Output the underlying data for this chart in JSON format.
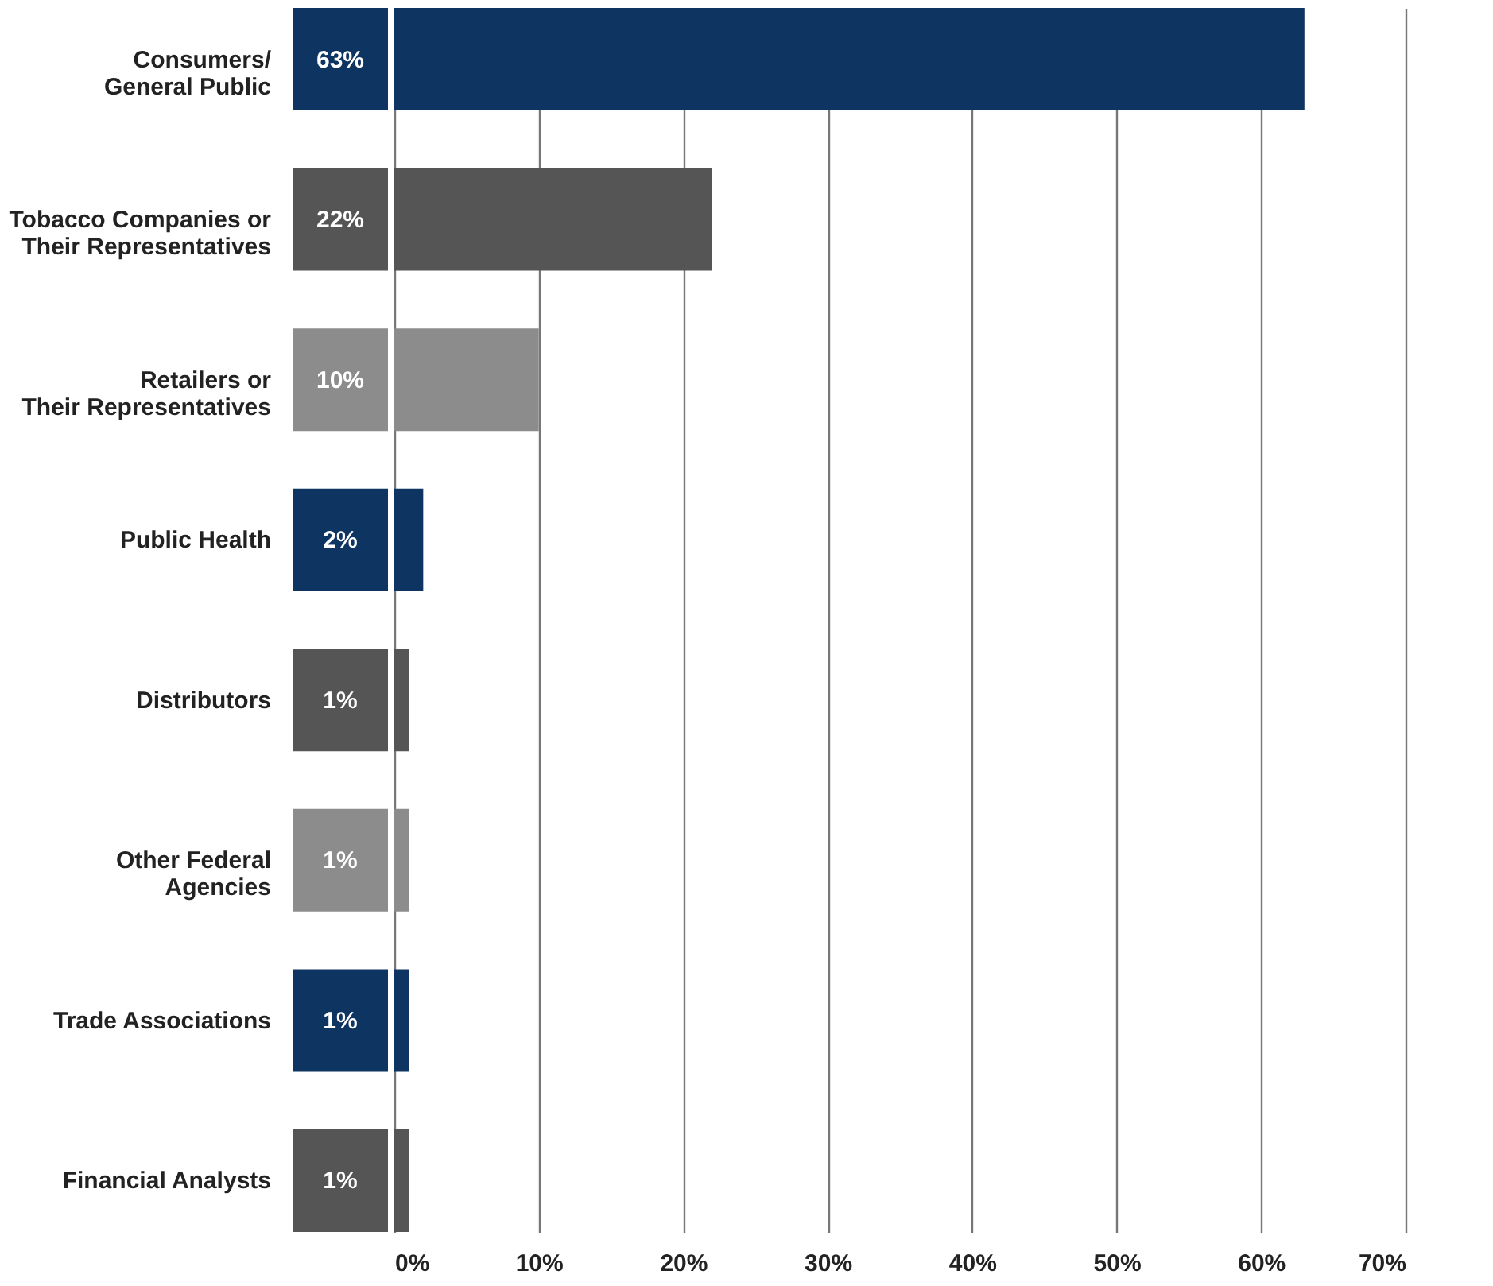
{
  "chart_data": {
    "type": "bar",
    "orientation": "horizontal",
    "categories": [
      "Consumers/\nGeneral Public",
      "Tobacco Companies or\nTheir Representatives",
      "Retailers or\nTheir Representatives",
      "Public Health",
      "Distributors",
      "Other Federal\nAgencies",
      "Trade Associations",
      "Financial Analysts"
    ],
    "values": [
      63,
      22,
      10,
      2,
      1,
      1,
      1,
      1
    ],
    "colors": [
      "#0e3461",
      "#555555",
      "#8c8c8c",
      "#0e3461",
      "#555555",
      "#8c8c8c",
      "#0e3461",
      "#555555"
    ],
    "value_labels": [
      "63%",
      "22%",
      "10%",
      "2%",
      "1%",
      "1%",
      "1%",
      "1%"
    ],
    "xlim": [
      0,
      70
    ],
    "xticks": [
      {
        "value": 0,
        "label": "0%"
      },
      {
        "value": 10,
        "label": "10%"
      },
      {
        "value": 20,
        "label": "20%"
      },
      {
        "value": 30,
        "label": "30%"
      },
      {
        "value": 40,
        "label": "40%"
      },
      {
        "value": 50,
        "label": "50%"
      },
      {
        "value": 60,
        "label": "60%"
      },
      {
        "value": 70,
        "label": "70%"
      }
    ],
    "grid": "x"
  }
}
